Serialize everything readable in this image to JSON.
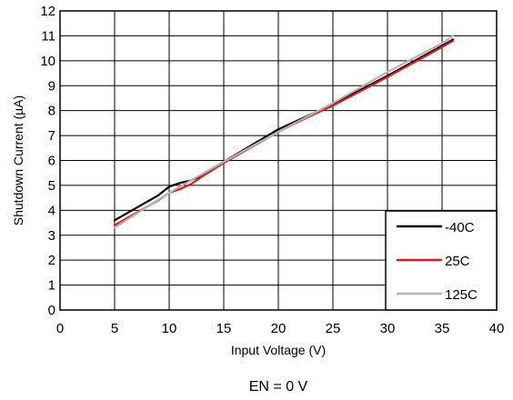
{
  "chart_data": {
    "type": "line",
    "title": "",
    "xlabel": "Input Voltage (V)",
    "ylabel": "Shutdown Current (µA)",
    "xlim": [
      0,
      40
    ],
    "ylim": [
      0,
      12
    ],
    "x_ticks": [
      0,
      5,
      10,
      15,
      20,
      25,
      30,
      35,
      40
    ],
    "y_ticks": [
      0,
      1,
      2,
      3,
      4,
      5,
      6,
      7,
      8,
      9,
      10,
      11,
      12
    ],
    "grid": true,
    "legend_position": "bottom-right",
    "series": [
      {
        "name": "-40C",
        "color": "#000000",
        "x": [
          5,
          7,
          9,
          10,
          11,
          12,
          13,
          15,
          20,
          25,
          30,
          35,
          36
        ],
        "y": [
          3.6,
          4.1,
          4.6,
          4.95,
          5.1,
          5.2,
          5.4,
          5.95,
          7.25,
          8.25,
          9.4,
          10.6,
          10.85
        ]
      },
      {
        "name": "25C",
        "color": "#e31a1c",
        "x": [
          5,
          7,
          9,
          10,
          11,
          12,
          13,
          15,
          20,
          23,
          25,
          30,
          35,
          36
        ],
        "y": [
          3.4,
          3.9,
          4.4,
          4.7,
          4.85,
          5.05,
          5.35,
          5.9,
          7.15,
          7.8,
          8.2,
          9.35,
          10.55,
          10.8
        ]
      },
      {
        "name": "125C",
        "color": "#b4b4b4",
        "x": [
          5,
          10,
          15,
          20,
          25,
          30,
          35,
          36
        ],
        "y": [
          3.3,
          4.7,
          5.95,
          7.15,
          8.3,
          9.55,
          10.7,
          11.0
        ]
      }
    ],
    "annotation": "EN = 0 V"
  }
}
